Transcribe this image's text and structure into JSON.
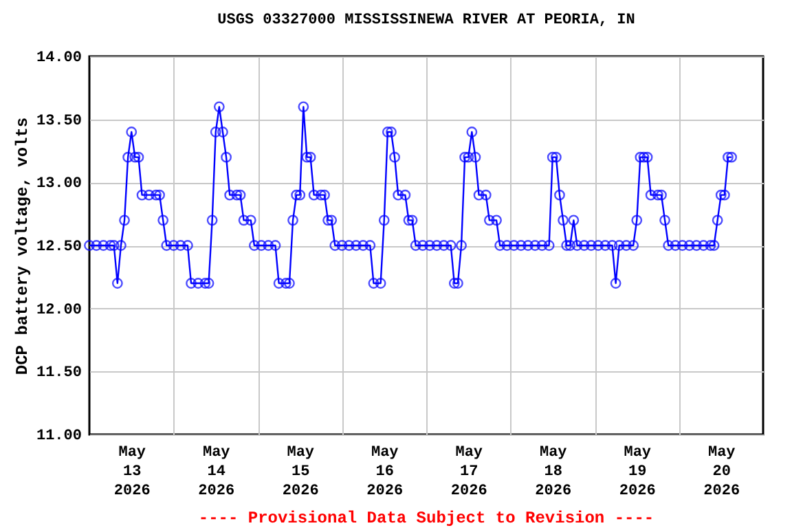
{
  "chart_data": {
    "type": "line",
    "title": "USGS 03327000 MISSISSINEWA RIVER AT PEORIA, IN",
    "ylabel": "DCP battery voltage, volts",
    "annotations": [
      "---- Provisional Data Subject to Revision ----"
    ],
    "marker": "circle",
    "grid": true,
    "xlim": [
      "2026-05-13T00:00",
      "2026-05-21T00:00"
    ],
    "xticks": [
      {
        "value": "2026-05-13T12:00",
        "label": "May\n13\n2026"
      },
      {
        "value": "2026-05-14T12:00",
        "label": "May\n14\n2026"
      },
      {
        "value": "2026-05-15T12:00",
        "label": "May\n15\n2026"
      },
      {
        "value": "2026-05-16T12:00",
        "label": "May\n16\n2026"
      },
      {
        "value": "2026-05-17T12:00",
        "label": "May\n17\n2026"
      },
      {
        "value": "2026-05-18T12:00",
        "label": "May\n18\n2026"
      },
      {
        "value": "2026-05-19T12:00",
        "label": "May\n19\n2026"
      },
      {
        "value": "2026-05-20T12:00",
        "label": "May\n20\n2026"
      },
      {
        "value": "2026-05-14T00:00",
        "label": null
      },
      {
        "value": "2026-05-15T00:00",
        "label": null
      },
      {
        "value": "2026-05-16T00:00",
        "label": null
      },
      {
        "value": "2026-05-17T00:00",
        "label": null
      },
      {
        "value": "2026-05-18T00:00",
        "label": null
      },
      {
        "value": "2026-05-19T00:00",
        "label": null
      },
      {
        "value": "2026-05-20T00:00",
        "label": null
      }
    ],
    "ylim": [
      11,
      14
    ],
    "yticks": [
      {
        "value": 11,
        "label": "11.00"
      },
      {
        "value": 11.5,
        "label": "11.50"
      },
      {
        "value": 12,
        "label": "12.00"
      },
      {
        "value": 12.5,
        "label": "12.50"
      },
      {
        "value": 13,
        "label": "13.00"
      },
      {
        "value": 13.5,
        "label": "13.50"
      },
      {
        "value": 14,
        "label": "14.00"
      }
    ],
    "x": [
      "2026-05-13T00:00",
      "2026-05-13T02:00",
      "2026-05-13T04:00",
      "2026-05-13T06:00",
      "2026-05-13T07:00",
      "2026-05-13T08:00",
      "2026-05-13T09:00",
      "2026-05-13T10:00",
      "2026-05-13T11:00",
      "2026-05-13T12:00",
      "2026-05-13T13:00",
      "2026-05-13T14:00",
      "2026-05-13T15:00",
      "2026-05-13T17:00",
      "2026-05-13T19:00",
      "2026-05-13T20:00",
      "2026-05-13T21:00",
      "2026-05-13T22:00",
      "2026-05-14T00:00",
      "2026-05-14T02:00",
      "2026-05-14T04:00",
      "2026-05-14T05:00",
      "2026-05-14T07:00",
      "2026-05-14T09:00",
      "2026-05-14T10:00",
      "2026-05-14T11:00",
      "2026-05-14T12:00",
      "2026-05-14T13:00",
      "2026-05-14T14:00",
      "2026-05-14T15:00",
      "2026-05-14T16:00",
      "2026-05-14T18:00",
      "2026-05-14T19:00",
      "2026-05-14T20:00",
      "2026-05-14T22:00",
      "2026-05-14T23:00",
      "2026-05-15T01:00",
      "2026-05-15T03:00",
      "2026-05-15T05:00",
      "2026-05-15T06:00",
      "2026-05-15T08:00",
      "2026-05-15T09:00",
      "2026-05-15T10:00",
      "2026-05-15T11:00",
      "2026-05-15T12:00",
      "2026-05-15T13:00",
      "2026-05-15T14:00",
      "2026-05-15T15:00",
      "2026-05-15T16:00",
      "2026-05-15T18:00",
      "2026-05-15T19:00",
      "2026-05-15T20:00",
      "2026-05-15T21:00",
      "2026-05-15T22:00",
      "2026-05-16T00:00",
      "2026-05-16T02:00",
      "2026-05-16T04:00",
      "2026-05-16T06:00",
      "2026-05-16T08:00",
      "2026-05-16T09:00",
      "2026-05-16T11:00",
      "2026-05-16T12:00",
      "2026-05-16T13:00",
      "2026-05-16T14:00",
      "2026-05-16T15:00",
      "2026-05-16T16:00",
      "2026-05-16T18:00",
      "2026-05-16T19:00",
      "2026-05-16T20:00",
      "2026-05-16T21:00",
      "2026-05-16T23:00",
      "2026-05-17T01:00",
      "2026-05-17T03:00",
      "2026-05-17T05:00",
      "2026-05-17T07:00",
      "2026-05-17T08:00",
      "2026-05-17T09:00",
      "2026-05-17T10:00",
      "2026-05-17T11:00",
      "2026-05-17T12:00",
      "2026-05-17T13:00",
      "2026-05-17T14:00",
      "2026-05-17T15:00",
      "2026-05-17T17:00",
      "2026-05-17T18:00",
      "2026-05-17T20:00",
      "2026-05-17T21:00",
      "2026-05-17T23:00",
      "2026-05-18T01:00",
      "2026-05-18T03:00",
      "2026-05-18T05:00",
      "2026-05-18T07:00",
      "2026-05-18T09:00",
      "2026-05-18T11:00",
      "2026-05-18T12:00",
      "2026-05-18T13:00",
      "2026-05-18T14:00",
      "2026-05-18T15:00",
      "2026-05-18T16:00",
      "2026-05-18T17:00",
      "2026-05-18T18:00",
      "2026-05-18T19:00",
      "2026-05-18T21:00",
      "2026-05-18T23:00",
      "2026-05-19T01:00",
      "2026-05-19T03:00",
      "2026-05-19T05:00",
      "2026-05-19T06:00",
      "2026-05-19T07:00",
      "2026-05-19T09:00",
      "2026-05-19T11:00",
      "2026-05-19T12:00",
      "2026-05-19T13:00",
      "2026-05-19T14:00",
      "2026-05-19T15:00",
      "2026-05-19T16:00",
      "2026-05-19T18:00",
      "2026-05-19T19:00",
      "2026-05-19T20:00",
      "2026-05-19T21:00",
      "2026-05-19T23:00",
      "2026-05-20T01:00",
      "2026-05-20T03:00",
      "2026-05-20T05:00",
      "2026-05-20T07:00",
      "2026-05-20T09:00",
      "2026-05-20T10:00",
      "2026-05-20T11:00",
      "2026-05-20T12:00",
      "2026-05-20T13:00",
      "2026-05-20T14:00",
      "2026-05-20T15:00"
    ],
    "series": [
      {
        "color": "#0000ff",
        "values": [
          12.5,
          12.5,
          12.5,
          12.5,
          12.5,
          12.2,
          12.5,
          12.7,
          13.2,
          13.4,
          13.2,
          13.2,
          12.9,
          12.9,
          12.9,
          12.9,
          12.7,
          12.5,
          12.5,
          12.5,
          12.5,
          12.2,
          12.2,
          12.2,
          12.2,
          12.7,
          13.4,
          13.6,
          13.4,
          13.2,
          12.9,
          12.9,
          12.9,
          12.7,
          12.7,
          12.5,
          12.5,
          12.5,
          12.5,
          12.2,
          12.2,
          12.2,
          12.7,
          12.9,
          12.9,
          13.6,
          13.2,
          13.2,
          12.9,
          12.9,
          12.9,
          12.7,
          12.7,
          12.5,
          12.5,
          12.5,
          12.5,
          12.5,
          12.5,
          12.2,
          12.2,
          12.7,
          13.4,
          13.4,
          13.2,
          12.9,
          12.9,
          12.7,
          12.7,
          12.5,
          12.5,
          12.5,
          12.5,
          12.5,
          12.5,
          12.2,
          12.2,
          12.5,
          13.2,
          13.2,
          13.4,
          13.2,
          12.9,
          12.9,
          12.7,
          12.7,
          12.5,
          12.5,
          12.5,
          12.5,
          12.5,
          12.5,
          12.5,
          12.5,
          13.2,
          13.2,
          12.9,
          12.7,
          12.5,
          12.5,
          12.7,
          12.5,
          12.5,
          12.5,
          12.5,
          12.5,
          12.5,
          12.2,
          12.5,
          12.5,
          12.5,
          12.7,
          13.2,
          13.2,
          13.2,
          12.9,
          12.9,
          12.9,
          12.7,
          12.5,
          12.5,
          12.5,
          12.5,
          12.5,
          12.5,
          12.5,
          12.5,
          12.7,
          12.9,
          12.9,
          13.2,
          13.2
        ]
      }
    ]
  }
}
